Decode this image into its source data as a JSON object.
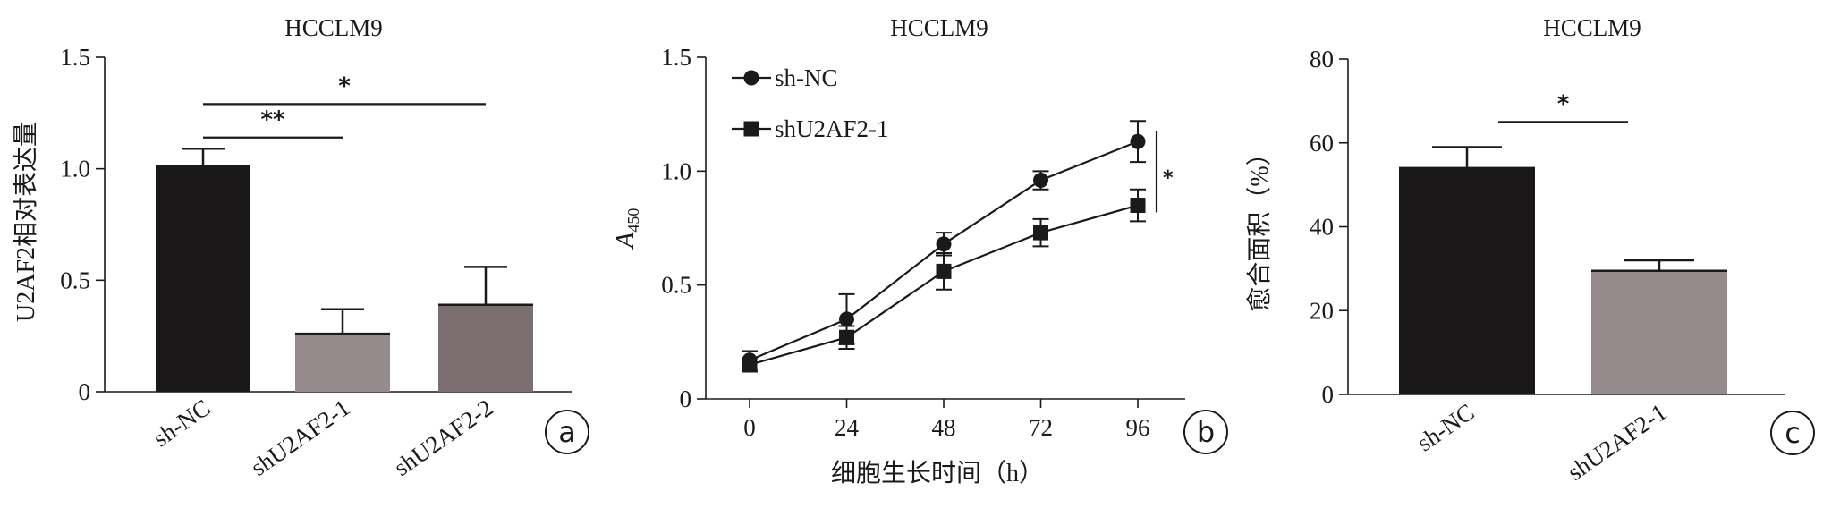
{
  "chart_data": [
    {
      "panel": "a",
      "type": "bar",
      "title": "HCCLM9",
      "ylabel": "U2AF2相对表达量",
      "xlabel": "",
      "ylim": [
        0,
        1.5
      ],
      "yticks": [
        0,
        0.5,
        1.0,
        1.5
      ],
      "ytick_labels": [
        "0",
        "0.5",
        "1.0",
        "1.5"
      ],
      "categories": [
        "sh-NC",
        "shU2AF2-1",
        "shU2AF2-2"
      ],
      "values": [
        1.01,
        0.26,
        0.39
      ],
      "errors": [
        0.08,
        0.11,
        0.17
      ],
      "bar_colors": [
        "#1a1718",
        "#958b8c",
        "#7a6e70"
      ],
      "significance": [
        {
          "from": "sh-NC",
          "to": "shU2AF2-1",
          "y": 1.14,
          "label": "**"
        },
        {
          "from": "sh-NC",
          "to": "shU2AF2-2",
          "y": 1.29,
          "label": "*"
        }
      ],
      "panel_label": "a",
      "grid": false
    },
    {
      "panel": "b",
      "type": "line",
      "title": "HCCLM9",
      "ylabel": "A450",
      "ylabel_main": "A",
      "ylabel_sub": "450",
      "xlabel": "细胞生长时间（h）",
      "ylim": [
        0,
        1.5
      ],
      "xlim": [
        0,
        96
      ],
      "x": [
        0,
        24,
        48,
        72,
        96
      ],
      "xtick_labels": [
        "0",
        "24",
        "48",
        "72",
        "96"
      ],
      "yticks": [
        0,
        0.5,
        1.0,
        1.5
      ],
      "ytick_labels": [
        "0",
        "0.5",
        "1.0",
        "1.5"
      ],
      "series": [
        {
          "name": "sh-NC",
          "marker": "circle",
          "values": [
            0.17,
            0.35,
            0.68,
            0.96,
            1.13
          ],
          "errors": [
            0.04,
            0.11,
            0.05,
            0.04,
            0.09
          ]
        },
        {
          "name": "shU2AF2-1",
          "marker": "square",
          "values": [
            0.15,
            0.27,
            0.56,
            0.73,
            0.85
          ],
          "errors": [
            0.03,
            0.05,
            0.08,
            0.06,
            0.07
          ]
        }
      ],
      "significance": {
        "label": "*",
        "from_y": 1.13,
        "to_y": 0.85
      },
      "legend": "top-left",
      "panel_label": "b",
      "grid": false
    },
    {
      "panel": "c",
      "type": "bar",
      "title": "HCCLM9",
      "ylabel": "愈合面积（%）",
      "xlabel": "",
      "ylim": [
        0,
        80
      ],
      "yticks": [
        0,
        20,
        40,
        60,
        80
      ],
      "ytick_labels": [
        "0",
        "20",
        "40",
        "60",
        "80"
      ],
      "categories": [
        "sh-NC",
        "shU2AF2-1"
      ],
      "values": [
        54,
        29.5
      ],
      "errors": [
        5,
        2.5
      ],
      "bar_colors": [
        "#1a1718",
        "#958b8c"
      ],
      "significance": [
        {
          "from": "sh-NC",
          "to": "shU2AF2-1",
          "y": 65,
          "label": "*"
        }
      ],
      "panel_label": "c",
      "grid": false
    }
  ]
}
